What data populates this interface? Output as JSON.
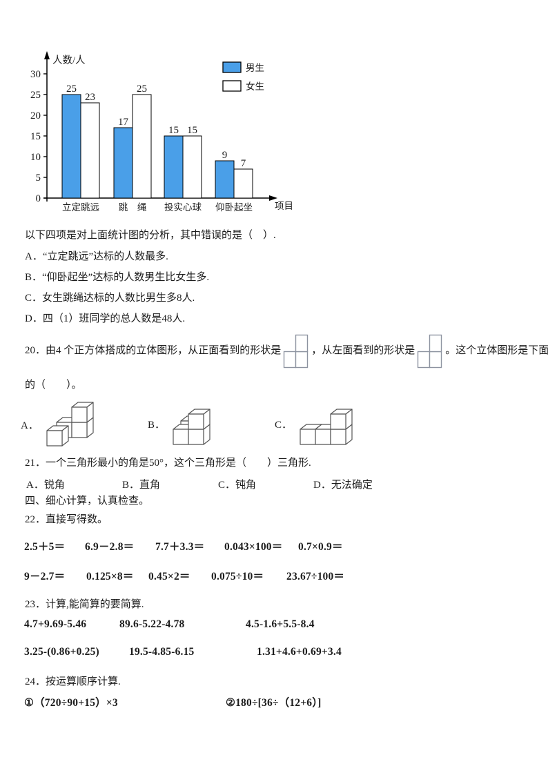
{
  "page": {
    "background": "#ffffff",
    "text_color": "#1c1c1c"
  },
  "chart_data": {
    "type": "bar",
    "title": "",
    "ylabel": "人数/人",
    "xlabel": "项目",
    "categories": [
      "立定跳远",
      "跳　绳",
      "投实心球",
      "仰卧起坐"
    ],
    "series": [
      {
        "name": "男生",
        "color": "#4a9fe8",
        "values": [
          25,
          17,
          15,
          9
        ]
      },
      {
        "name": "女生",
        "color": "#ffffff",
        "values": [
          23,
          25,
          15,
          7
        ]
      }
    ],
    "yticks": [
      0,
      5,
      10,
      15,
      20,
      25,
      30
    ],
    "ylim": [
      0,
      32
    ],
    "grid": false,
    "legend_position": "top-right",
    "bar_outline": "#000000"
  },
  "q19": {
    "stem": "以下四项是对上面统计图的分析，其中错误的是（　）.",
    "options": [
      "A．“立定跳远”达标的人数最多.",
      "B．“仰卧起坐”达标的人数男生比女生多.",
      "C．女生跳绳达标的人数比男生多8人.",
      "D．四（1）班同学的总人数是48人."
    ]
  },
  "q20": {
    "part1": "20．由4 个正方体搭成的立体图形，从正面看到的形状是",
    "part2": "，从左面看到的形状是",
    "part3": "。这个立体图形是下面",
    "line2": "的（　　）。",
    "option_labels": [
      "A．",
      "B．",
      "C．"
    ]
  },
  "q21": {
    "stem": "21．一个三角形最小的角是50°，这个三角形是（　　）三角形.",
    "options": [
      "A．锐角",
      "B．直角",
      "C．钝角",
      "D．无法确定"
    ]
  },
  "section4": {
    "title": "四、细心计算，认真检查。"
  },
  "q22": {
    "title": "22．直接写得数。",
    "row1": [
      "2.5＋5＝",
      "6.9－2.8＝",
      "7.7＋3.3＝",
      "0.043×100＝",
      "0.7×0.9＝"
    ],
    "row2": [
      "9－2.7＝",
      "0.125×8＝",
      "0.45×2＝",
      "0.075÷10＝",
      "23.67÷100＝"
    ]
  },
  "q23": {
    "title": "23．计算,能简算的要简算.",
    "row1": [
      "4.7+9.69-5.46",
      "89.6-5.22-4.78",
      "4.5-1.6+5.5-8.4"
    ],
    "row2": [
      "3.25-(0.86+0.25)",
      "19.5-4.85-6.15",
      "1.31+4.6+0.69+3.4"
    ]
  },
  "q24": {
    "title": "24．按运算顺序计算.",
    "items": [
      "①（720÷90+15）×3",
      "②180÷[36÷（12+6）]"
    ]
  }
}
